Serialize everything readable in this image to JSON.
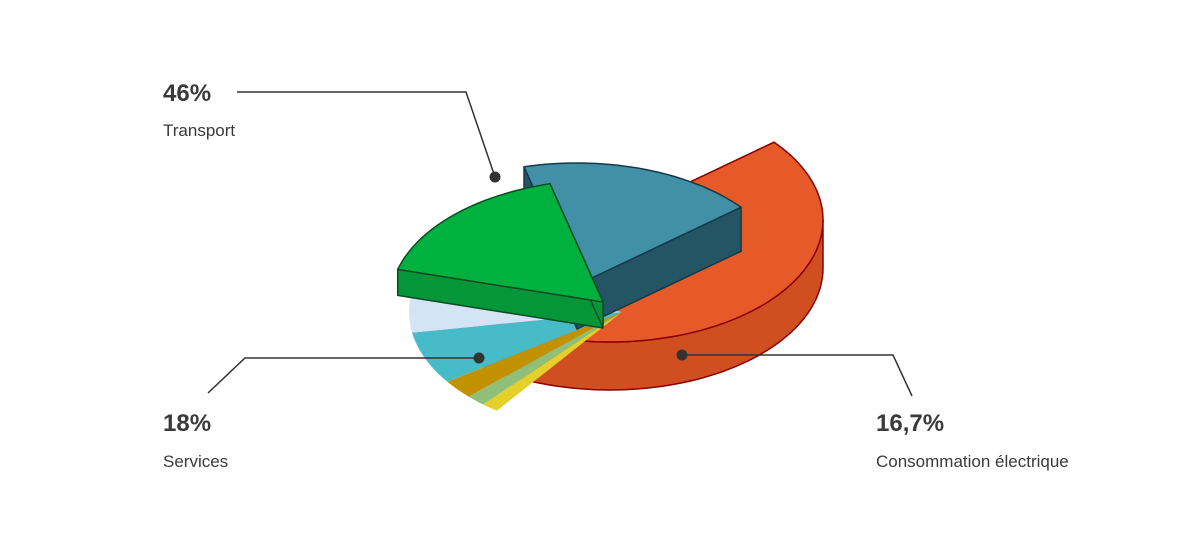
{
  "chart_data": {
    "type": "pie",
    "style": "3d-exploded",
    "slices": [
      {
        "label": "Transport",
        "value_label": "46%",
        "value": 46,
        "color": "#e65a2a",
        "labeled": true
      },
      {
        "label": "",
        "value": 1.3,
        "color": "#e5cf2a",
        "labeled": false
      },
      {
        "label": "",
        "value": 1.5,
        "color": "#8fbf78",
        "labeled": false
      },
      {
        "label": "",
        "value": 2.5,
        "color": "#c29100",
        "labeled": false
      },
      {
        "label": "",
        "value": 7.0,
        "color": "#47bcc8",
        "labeled": false
      },
      {
        "label": "",
        "value": 7.0,
        "color": "#d4e4f6",
        "labeled": false
      },
      {
        "label": "Consommation électrique",
        "value_label": "16,7%",
        "value": 16.7,
        "color": "#00b140",
        "labeled": true
      },
      {
        "label": "Services",
        "value_label": "18%",
        "value": 18,
        "color": "#4190a8",
        "labeled": true
      }
    ]
  }
}
